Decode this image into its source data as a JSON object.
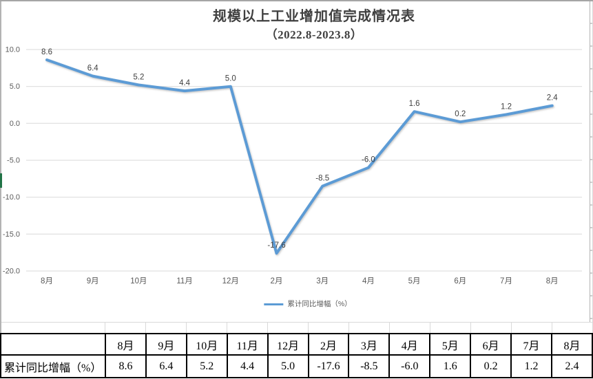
{
  "window": {
    "accent_green": "#217346",
    "edge_gray": "#ababab"
  },
  "chart_data": {
    "type": "line",
    "title": "规模以上工业增加值完成情况表",
    "subtitle": "（2022.8-2023.8）",
    "categories": [
      "8月",
      "9月",
      "10月",
      "11月",
      "12月",
      "2月",
      "3月",
      "4月",
      "5月",
      "6月",
      "7月",
      "8月"
    ],
    "series": [
      {
        "name": "累计同比增幅（%）",
        "values": [
          8.6,
          6.4,
          5.2,
          4.4,
          5.0,
          -17.6,
          -8.5,
          -6.0,
          1.6,
          0.2,
          1.2,
          2.4
        ]
      }
    ],
    "xlabel": "",
    "ylabel": "",
    "ylim": [
      -20,
      10
    ],
    "ytick_step": 5,
    "ytick_labels": [
      "10.0",
      "5.0",
      "0.0",
      "-5.0",
      "-10.0",
      "-15.0",
      "-20.0"
    ],
    "grid": true,
    "data_labels": true,
    "legend_position": "bottom",
    "line_color": "#5B9BD5",
    "gridline_color": "#d9d9d9",
    "axis_text_color": "#595959",
    "label_text_color": "#404040"
  },
  "table": {
    "row_label": "累计同比增幅（%）",
    "columns": [
      "8月",
      "9月",
      "10月",
      "11月",
      "12月",
      "2月",
      "3月",
      "4月",
      "5月",
      "6月",
      "7月",
      "8月"
    ],
    "values": [
      "8.6",
      "6.4",
      "5.2",
      "4.4",
      "5.0",
      "-17.6",
      "-8.5",
      "-6.0",
      "1.6",
      "0.2",
      "1.2",
      "2.4"
    ]
  }
}
